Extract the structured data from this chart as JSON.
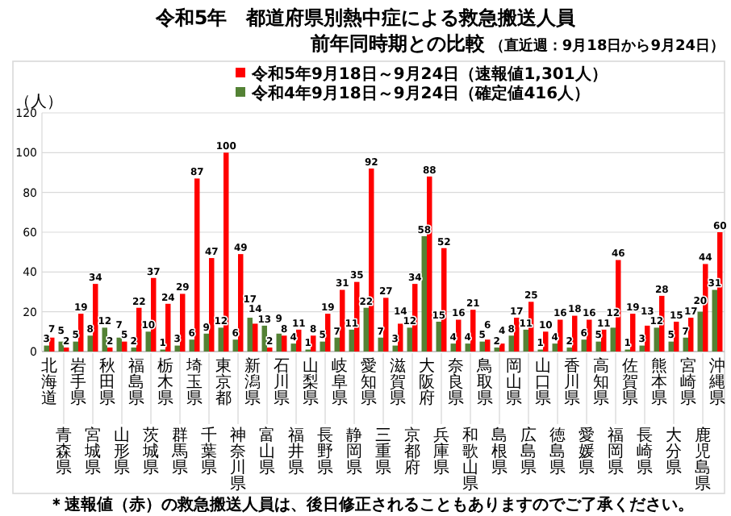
{
  "chart_data": {
    "type": "bar",
    "title": "令和5年　都道府県別熱中症による救急搬送人員",
    "subtitle": "前年同時期との比較",
    "annotations": [
      "（直近週：9月18日から9月24日）",
      "＊速報値（赤）の救急搬送人員は、後日修正されることもありますのでご了承ください。"
    ],
    "ylabel": "（人）",
    "categories": [
      "北海道",
      "青森県",
      "岩手県",
      "宮城県",
      "秋田県",
      "山形県",
      "福島県",
      "茨城県",
      "栃木県",
      "群馬県",
      "埼玉県",
      "千葉県",
      "東京都",
      "神奈川県",
      "新潟県",
      "富山県",
      "石川県",
      "福井県",
      "山梨県",
      "長野県",
      "岐阜県",
      "静岡県",
      "愛知県",
      "三重県",
      "滋賀県",
      "京都府",
      "大阪府",
      "兵庫県",
      "奈良県",
      "和歌山県",
      "鳥取県",
      "島根県",
      "岡山県",
      "広島県",
      "山口県",
      "徳島県",
      "香川県",
      "愛媛県",
      "高知県",
      "福岡県",
      "佐賀県",
      "長崎県",
      "熊本県",
      "大分県",
      "宮崎県",
      "鹿児島県",
      "沖縄県"
    ],
    "series": [
      {
        "name": "令和5年9月18日～9月24日（速報値1,301人）",
        "color": "#ff0000",
        "values": [
          7,
          2,
          19,
          34,
          2,
          5,
          22,
          37,
          24,
          29,
          87,
          47,
          100,
          49,
          14,
          2,
          8,
          11,
          8,
          19,
          31,
          35,
          92,
          27,
          14,
          34,
          88,
          52,
          16,
          21,
          6,
          4,
          17,
          25,
          10,
          16,
          18,
          16,
          11,
          46,
          19,
          13,
          28,
          15,
          17,
          44,
          60
        ]
      },
      {
        "name": "令和4年9月18日～9月24日（確定値416人）",
        "color": "#548235",
        "values": [
          3,
          5,
          5,
          8,
          12,
          7,
          2,
          10,
          1,
          3,
          6,
          9,
          12,
          6,
          17,
          13,
          9,
          4,
          1,
          5,
          7,
          11,
          22,
          7,
          3,
          12,
          58,
          15,
          4,
          4,
          5,
          2,
          8,
          11,
          1,
          4,
          2,
          6,
          5,
          12,
          1,
          3,
          12,
          5,
          7,
          20,
          31
        ]
      }
    ],
    "ylim": [
      0,
      120
    ],
    "yticks": [
      0,
      20,
      40,
      60,
      80,
      100,
      120
    ],
    "grid": "y",
    "legend": "top",
    "data_labels": true
  }
}
